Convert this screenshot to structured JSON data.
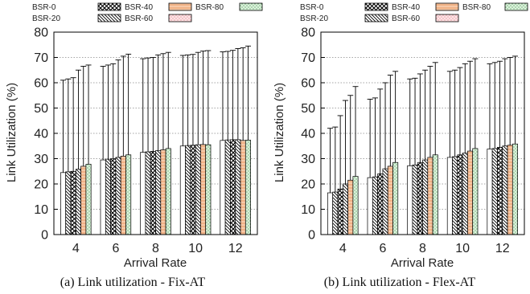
{
  "chart_data": [
    {
      "type": "bar",
      "title": "",
      "caption": "(a) Link utilization - Fix-AT",
      "xlabel": "Arrival Rate",
      "ylabel": "Link Utilization (%)",
      "ylim": [
        0,
        80
      ],
      "yticks": [
        0,
        10,
        20,
        30,
        40,
        50,
        60,
        70,
        80
      ],
      "grid": "horizontal dotted",
      "legend": "top",
      "categories": [
        "4",
        "6",
        "8",
        "10",
        "12"
      ],
      "series": [
        {
          "name": "BSR-0",
          "values": [
            24.5,
            29.5,
            32.5,
            35.0,
            37.2
          ],
          "error_upper": [
            61.0,
            66.5,
            69.5,
            70.8,
            72.2
          ]
        },
        {
          "name": "BSR-20",
          "values": [
            24.8,
            29.8,
            32.7,
            35.2,
            37.4
          ],
          "error_upper": [
            61.5,
            67.0,
            69.8,
            71.0,
            72.4
          ]
        },
        {
          "name": "BSR-40",
          "values": [
            25.0,
            30.0,
            32.9,
            35.3,
            37.5
          ],
          "error_upper": [
            62.0,
            67.5,
            70.0,
            71.2,
            72.8
          ]
        },
        {
          "name": "BSR-60",
          "values": [
            25.8,
            30.5,
            33.2,
            35.5,
            37.5
          ],
          "error_upper": [
            65.0,
            69.0,
            71.0,
            72.0,
            73.5
          ]
        },
        {
          "name": "BSR-80",
          "values": [
            27.0,
            31.0,
            33.5,
            35.6,
            37.2
          ],
          "error_upper": [
            66.5,
            70.5,
            71.5,
            72.5,
            73.8
          ]
        },
        {
          "name": "",
          "values": [
            27.8,
            31.5,
            34.0,
            35.5,
            37.3
          ],
          "error_upper": [
            67.0,
            71.3,
            72.0,
            72.7,
            74.5
          ]
        }
      ]
    },
    {
      "type": "bar",
      "title": "",
      "caption": "(b) Link utilization - Flex-AT",
      "xlabel": "Arrival Rate",
      "ylabel": "Link Utilization (%)",
      "ylim": [
        0,
        80
      ],
      "yticks": [
        0,
        10,
        20,
        30,
        40,
        50,
        60,
        70,
        80
      ],
      "grid": "horizontal dotted",
      "legend": "top",
      "categories": [
        "4",
        "6",
        "8",
        "10",
        "12"
      ],
      "series": [
        {
          "name": "BSR-0",
          "values": [
            16.5,
            22.5,
            27.2,
            30.5,
            33.8
          ],
          "error_upper": [
            42.0,
            53.5,
            61.5,
            64.5,
            67.5
          ]
        },
        {
          "name": "BSR-20",
          "values": [
            16.8,
            22.8,
            27.5,
            30.8,
            34.0
          ],
          "error_upper": [
            42.5,
            54.0,
            61.8,
            65.0,
            68.0
          ]
        },
        {
          "name": "BSR-40",
          "values": [
            18.0,
            24.0,
            28.5,
            31.5,
            34.5
          ],
          "error_upper": [
            47.0,
            57.5,
            63.5,
            66.0,
            68.5
          ]
        },
        {
          "name": "BSR-60",
          "values": [
            20.0,
            26.0,
            29.5,
            32.2,
            35.0
          ],
          "error_upper": [
            53.0,
            60.0,
            65.0,
            67.5,
            69.5
          ]
        },
        {
          "name": "BSR-80",
          "values": [
            21.5,
            27.0,
            30.5,
            33.0,
            35.3
          ],
          "error_upper": [
            55.0,
            63.0,
            66.5,
            68.5,
            70.0
          ]
        },
        {
          "name": "",
          "values": [
            23.0,
            28.5,
            31.5,
            34.0,
            35.8
          ],
          "error_upper": [
            58.5,
            64.5,
            68.0,
            69.5,
            70.5
          ]
        }
      ]
    }
  ]
}
